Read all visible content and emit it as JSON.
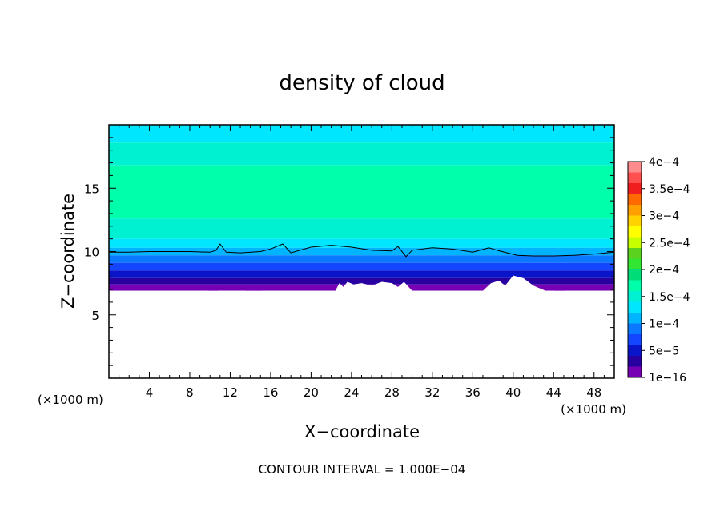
{
  "chart_data": {
    "type": "heatmap",
    "title": "density of cloud",
    "xlabel": "X−coordinate",
    "ylabel": "Z−coordinate",
    "x_unit_left": "(×1000 m)",
    "x_unit_right": "(×1000 m)",
    "xlim": [
      0,
      50
    ],
    "ylim": [
      0,
      20
    ],
    "x_ticks": [
      4,
      8,
      12,
      16,
      20,
      24,
      28,
      32,
      36,
      40,
      44,
      48
    ],
    "y_ticks": [
      5,
      10,
      15
    ],
    "grid": false,
    "footer": "CONTOUR INTERVAL = 1.000E−04",
    "colorbar": {
      "labels": [
        "4e−4",
        "3.5e−4",
        "3e−4",
        "2.5e−4",
        "2e−4",
        "1.5e−4",
        "1e−4",
        "5e−5",
        "1e−16"
      ],
      "label_values": [
        0.0004,
        0.00035,
        0.0003,
        0.00025,
        0.0002,
        0.00015,
        0.0001,
        5e-05,
        1e-16
      ],
      "colors_top_to_bottom": [
        "#ff8c8c",
        "#ff5050",
        "#f01e1e",
        "#ff6a00",
        "#ffa000",
        "#ffd200",
        "#ffff00",
        "#c8ff00",
        "#5ad21e",
        "#32e632",
        "#00dc78",
        "#00ffaa",
        "#00f0d2",
        "#00e6ff",
        "#00b4ff",
        "#0a78ff",
        "#1446ff",
        "#0a14c8",
        "#2800a0",
        "#7800b4"
      ]
    },
    "field_bands": [
      {
        "z": [
          18.6,
          20.0
        ],
        "color": "#00e6ff"
      },
      {
        "z": [
          16.8,
          18.6
        ],
        "color": "#00f0d2"
      },
      {
        "z": [
          12.6,
          16.8
        ],
        "color": "#00ffaa"
      },
      {
        "z": [
          11.0,
          12.6
        ],
        "color": "#00f0d2"
      },
      {
        "z": [
          10.3,
          11.0
        ],
        "color": "#00e6ff"
      },
      {
        "z": [
          9.7,
          10.3
        ],
        "color": "#00b4ff"
      },
      {
        "z": [
          9.1,
          9.7
        ],
        "color": "#0a78ff"
      },
      {
        "z": [
          8.5,
          9.1
        ],
        "color": "#1446ff"
      },
      {
        "z": [
          7.9,
          8.5
        ],
        "color": "#0a14c8"
      },
      {
        "z": [
          7.4,
          7.9
        ],
        "color": "#2800a0"
      },
      {
        "z": [
          6.9,
          7.4
        ],
        "color": "#7800b4"
      }
    ],
    "contour_1e-4": {
      "x": [
        0,
        2,
        4,
        6,
        8,
        10,
        10.6,
        11.0,
        11.6,
        13,
        15,
        16,
        17.2,
        18,
        20,
        22,
        24,
        26,
        28,
        28.6,
        29.4,
        30,
        32,
        34,
        36,
        37.6,
        38.4,
        39.4,
        40.4,
        42,
        44,
        46,
        48,
        50
      ],
      "z": [
        9.95,
        9.95,
        10.0,
        10.0,
        10.0,
        9.95,
        10.1,
        10.6,
        9.95,
        9.9,
        10.0,
        10.2,
        10.6,
        9.9,
        10.35,
        10.5,
        10.35,
        10.1,
        10.05,
        10.4,
        9.6,
        10.1,
        10.3,
        10.2,
        9.95,
        10.3,
        10.1,
        9.9,
        9.7,
        9.65,
        9.65,
        9.7,
        9.8,
        9.95
      ]
    },
    "empty_region_top_z": {
      "x": [
        0,
        2,
        2.2,
        9.8,
        10.0,
        10.6,
        10.8,
        13.5,
        14.0,
        14.4,
        14.8,
        15.2,
        15.6,
        22.4,
        22.8,
        23.2,
        23.6,
        24.2,
        25,
        26,
        27,
        28,
        28.6,
        29.2,
        30,
        37,
        37.8,
        38.6,
        39.2,
        40,
        41,
        42,
        43.2,
        44,
        44.6,
        45.2,
        48,
        50
      ],
      "z": [
        6.9,
        6.9,
        6.9,
        6.9,
        6.7,
        6.7,
        6.9,
        6.9,
        6.7,
        6.9,
        6.7,
        6.9,
        6.9,
        6.9,
        7.5,
        7.2,
        7.6,
        7.4,
        7.5,
        7.3,
        7.6,
        7.5,
        7.2,
        7.6,
        6.9,
        6.9,
        7.5,
        7.7,
        7.3,
        8.1,
        7.9,
        7.3,
        6.9,
        6.9,
        6.7,
        6.9,
        6.9,
        6.9
      ]
    }
  }
}
